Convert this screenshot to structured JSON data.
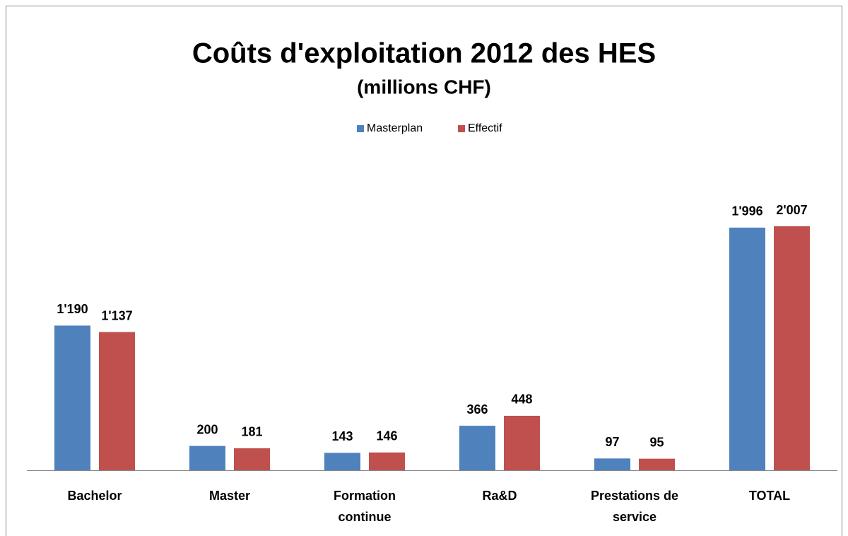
{
  "chart_data": {
    "type": "bar",
    "title": "Coûts d'exploitation 2012 des HES",
    "subtitle": "(millions CHF)",
    "categories": [
      "Bachelor",
      "Master",
      "Formation continue",
      "Ra&D",
      "Prestations de service",
      "TOTAL"
    ],
    "series": [
      {
        "name": "Masterplan",
        "color": "#4f81bd",
        "values": [
          1190,
          200,
          143,
          366,
          97,
          1996
        ],
        "value_labels": [
          "1'190",
          "200",
          "143",
          "366",
          "97",
          "1'996"
        ]
      },
      {
        "name": "Effectif",
        "color": "#c0504d",
        "values": [
          1137,
          181,
          146,
          448,
          95,
          2007
        ],
        "value_labels": [
          "1'137",
          "181",
          "146",
          "448",
          "95",
          "2'007"
        ]
      }
    ],
    "legend": "top"
  }
}
